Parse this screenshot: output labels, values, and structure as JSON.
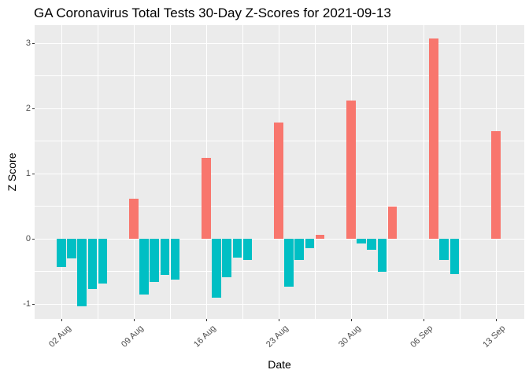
{
  "chart_data": {
    "type": "bar",
    "title": "GA Coronavirus Total Tests 30-Day Z-Scores for 2021-09-13",
    "xlabel": "Date",
    "ylabel": "Z Score",
    "x": [
      "2021-08-02",
      "2021-08-03",
      "2021-08-04",
      "2021-08-05",
      "2021-08-06",
      "2021-08-09",
      "2021-08-10",
      "2021-08-11",
      "2021-08-12",
      "2021-08-13",
      "2021-08-16",
      "2021-08-17",
      "2021-08-18",
      "2021-08-19",
      "2021-08-20",
      "2021-08-23",
      "2021-08-24",
      "2021-08-25",
      "2021-08-26",
      "2021-08-27",
      "2021-08-30",
      "2021-08-31",
      "2021-09-01",
      "2021-09-02",
      "2021-09-03",
      "2021-09-07",
      "2021-09-08",
      "2021-09-09",
      "2021-09-13"
    ],
    "values": [
      -0.43,
      -0.3,
      -1.04,
      -0.77,
      -0.69,
      0.62,
      -0.86,
      -0.66,
      -0.55,
      -0.63,
      1.24,
      -0.9,
      -0.59,
      -0.29,
      -0.33,
      1.78,
      -0.74,
      -0.32,
      -0.14,
      0.06,
      2.12,
      -0.07,
      -0.17,
      -0.51,
      0.49,
      3.07,
      -0.33,
      -0.54,
      1.65
    ],
    "x_tick_labels": [
      "02 Aug",
      "09 Aug",
      "16 Aug",
      "23 Aug",
      "30 Aug",
      "06 Sep",
      "13 Sep"
    ],
    "x_tick_dates": [
      "2021-08-02",
      "2021-08-09",
      "2021-08-16",
      "2021-08-23",
      "2021-08-30",
      "2021-09-06",
      "2021-09-13"
    ],
    "y_ticks": [
      -1,
      0,
      1,
      2,
      3
    ],
    "y_tick_labels": [
      "-1",
      "0",
      "1",
      "2",
      "3"
    ],
    "y_minor_ticks": [
      -0.5,
      0.5,
      1.5,
      2.5
    ],
    "ylim": [
      -1.23,
      3.28
    ],
    "grid": true,
    "legend_position": "none",
    "colors": {
      "positive": "#F8766D",
      "negative": "#00BFC4",
      "panel_background": "#EBEBEB",
      "gridline": "#FFFFFF",
      "tick_mark": "#333333",
      "tick_label": "#4D4D4D",
      "title_text": "#000000"
    }
  }
}
